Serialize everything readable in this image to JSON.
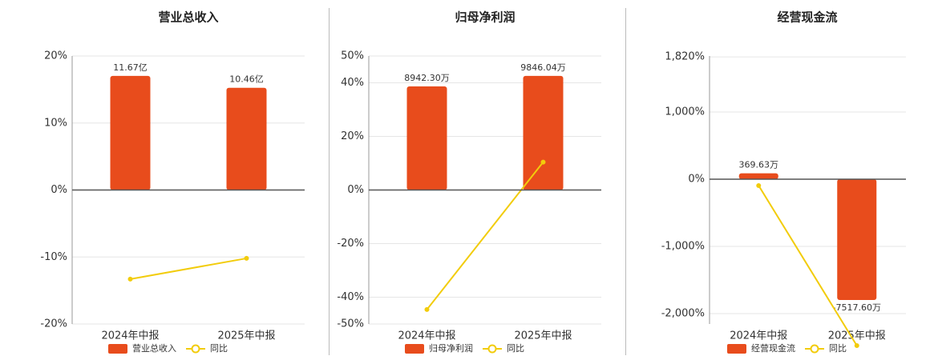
{
  "chart_data": [
    {
      "type": "bar",
      "title": "营业总收入",
      "categories": [
        "2024年中报",
        "2025年中报"
      ],
      "series": [
        {
          "name": "营业总收入",
          "color": "#e84c1c",
          "values": [
            11.67,
            10.46
          ],
          "value_labels": [
            "11.67亿",
            "10.46亿"
          ],
          "axis": "y2"
        },
        {
          "name": "同比",
          "color": "#f2cc0c",
          "type": "line",
          "values": [
            -13.3,
            -10.2
          ]
        }
      ],
      "ylim": [
        -20,
        20
      ],
      "yticks": [
        {
          "value": -20,
          "label": "-20%"
        },
        {
          "value": -10,
          "label": "-10%"
        },
        {
          "value": 0,
          "label": "0%"
        },
        {
          "value": 10,
          "label": "10%"
        },
        {
          "value": 20,
          "label": "20%"
        }
      ],
      "y2lim": [
        -13.71,
        13.71
      ],
      "grid": true
    },
    {
      "type": "bar",
      "title": "归母净利润",
      "categories": [
        "2024年中报",
        "2025年中报"
      ],
      "series": [
        {
          "name": "归母净利润",
          "color": "#e84c1c",
          "values": [
            8942.3,
            9846.04
          ],
          "value_labels": [
            "8942.30万",
            "9846.04万"
          ],
          "axis": "y2"
        },
        {
          "name": "同比",
          "color": "#f2cc0c",
          "type": "line",
          "values": [
            -44.6,
            10.4
          ]
        }
      ],
      "ylim": [
        -50,
        50
      ],
      "yticks": [
        {
          "value": -50,
          "label": "-50%"
        },
        {
          "value": -40,
          "label": "-40%"
        },
        {
          "value": -20,
          "label": "-20%"
        },
        {
          "value": 0,
          "label": "0%"
        },
        {
          "value": 20,
          "label": "20%"
        },
        {
          "value": 40,
          "label": "40%"
        },
        {
          "value": 50,
          "label": "50%"
        }
      ],
      "y2lim": [
        -11567,
        11567
      ],
      "grid": true
    },
    {
      "type": "bar",
      "title": "经营现金流",
      "categories": [
        "2024年中报",
        "2025年中报"
      ],
      "series": [
        {
          "name": "经营现金流",
          "color": "#e84c1c",
          "values": [
            369.63,
            -7517.6
          ],
          "value_labels": [
            "369.63万",
            "-7517.60万"
          ],
          "axis": "y2"
        },
        {
          "name": "同比",
          "color": "#f2cc0c",
          "type": "line",
          "values": [
            -95,
            -2476
          ]
        }
      ],
      "ylim": [
        -2155,
        1833
      ],
      "yticks": [
        {
          "value": -2000,
          "label": "-2,000%"
        },
        {
          "value": -1000,
          "label": "-1,000%"
        },
        {
          "value": 0,
          "label": "0%"
        },
        {
          "value": 1000,
          "label": "1,000%"
        },
        {
          "value": 1820,
          "label": "1,820%"
        }
      ],
      "y2lim": [
        -9011,
        7667
      ],
      "grid": true
    }
  ]
}
